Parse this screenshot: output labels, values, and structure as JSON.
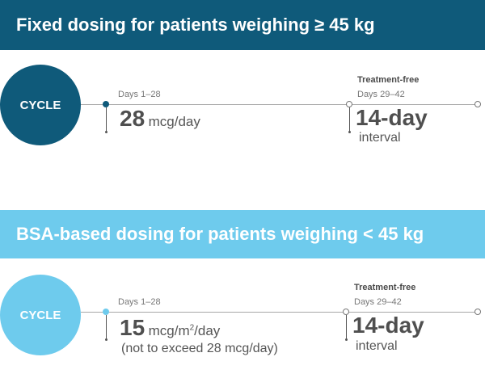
{
  "section1": {
    "title": "Fixed dosing for patients weighing ≥ 45 kg",
    "cycle_label": "CYCLE",
    "days_label": "Days 1–28",
    "dose_value": "28",
    "dose_unit": "mcg/day",
    "treatment_free_label": "Treatment-free",
    "treatment_free_days": "Days 29–42",
    "interval_value": "14-day",
    "interval_label": "interval",
    "color": "#0f5a7a"
  },
  "section2": {
    "title": "BSA-based dosing for patients weighing < 45 kg",
    "cycle_label": "CYCLE",
    "days_label": "Days 1–28",
    "dose_value": "15",
    "dose_unit_prefix": "mcg/m",
    "dose_unit_exp": "2",
    "dose_unit_suffix": "/day",
    "dose_note": "(not to exceed 28 mcg/day)",
    "treatment_free_label": "Treatment-free",
    "treatment_free_days": "Days 29–42",
    "interval_value": "14-day",
    "interval_label": "interval",
    "color": "#6ecbed"
  }
}
